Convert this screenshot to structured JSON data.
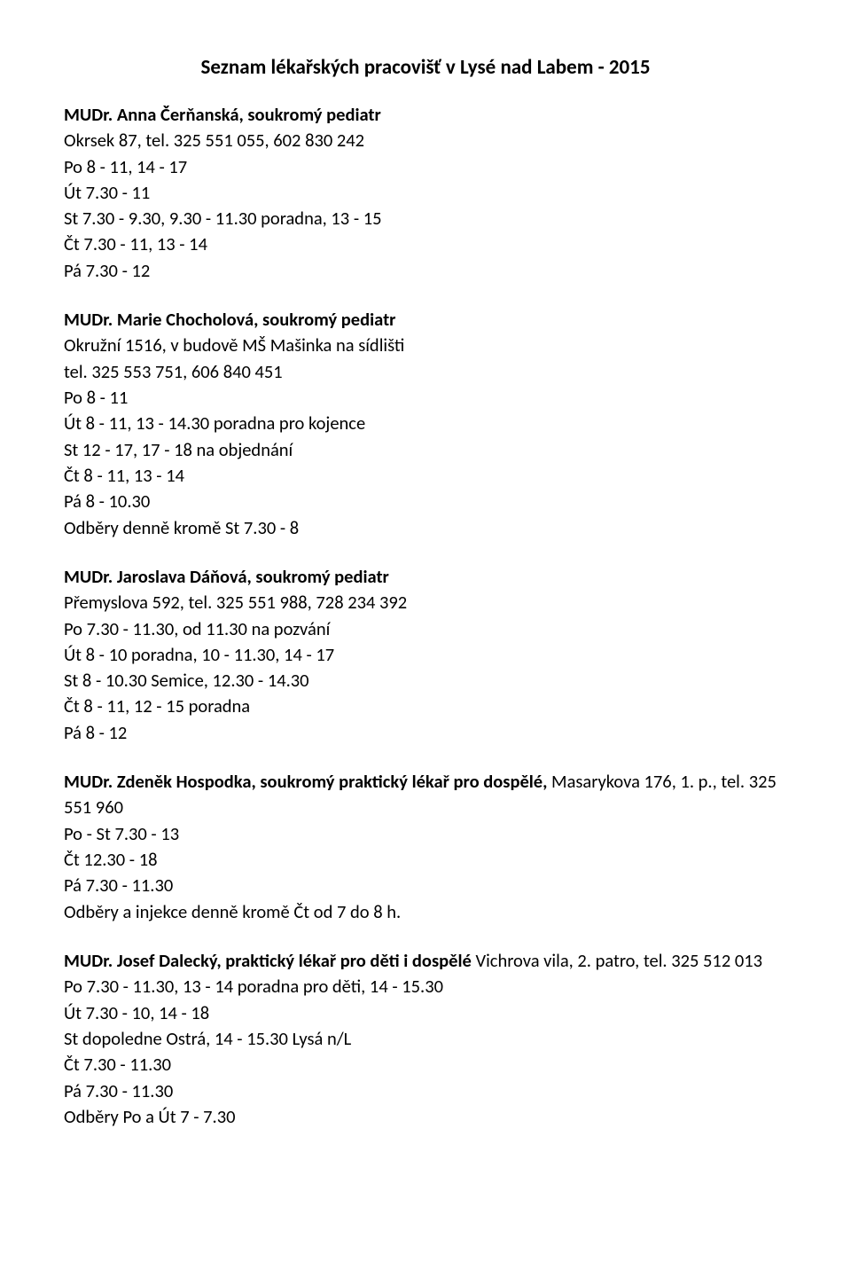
{
  "title": "Seznam lékařských pracovišť v Lysé nad Labem - 2015",
  "sections": [
    {
      "heading_pre": "",
      "heading_bold": "MUDr. Anna Čerňanská, soukromý pediatr",
      "heading_post": "",
      "lines": [
        "Okrsek 87, tel. 325 551 055, 602 830 242",
        "Po  8 - 11,  14 - 17",
        "Út 7.30 - 11",
        "St  7.30 - 9.30,  9.30 - 11.30 poradna,  13 - 15",
        "Čt 7.30 - 11, 13 - 14",
        "Pá 7.30 - 12"
      ]
    },
    {
      "heading_pre": "",
      "heading_bold": "MUDr. Marie Chocholová, soukromý pediatr",
      "heading_post": "",
      "lines": [
        "Okružní 1516, v budově MŠ Mašinka na sídlišti",
        "tel. 325 553 751,  606 840 451",
        "Po  8 - 11",
        "Út   8 - 11,  13 - 14.30 poradna pro kojence",
        "St  12 - 17,  17 - 18 na objednání",
        "Čt   8 - 11,  13 - 14",
        "Pá  8 - 10.30",
        "Odběry denně kromě St 7.30 - 8"
      ]
    },
    {
      "heading_pre": "",
      "heading_bold": "MUDr. Jaroslava Dáňová, soukromý pediatr",
      "heading_post": "",
      "lines": [
        "Přemyslova 592, tel. 325 551 988, 728 234 392",
        "Po  7.30 - 11.30,  od 11.30 na pozvání",
        "Út   8 - 10 poradna,  10 - 11.30,  14 - 17",
        "St   8 - 10.30 Semice,  12.30 - 14.30",
        "Čt   8 - 11,  12 - 15 poradna",
        "Pá  8 - 12"
      ]
    },
    {
      "heading_pre": "",
      "heading_bold": "MUDr. Zdeněk Hospodka, soukromý praktický lékař pro dospělé, ",
      "heading_post": "Masarykova 176, 1. p., tel. 325 551 960",
      "lines": [
        "Po - St   7.30 - 13",
        "Čt         12.30 - 18",
        "Pá         7.30 - 11.30",
        "Odběry a injekce denně kromě Čt od 7 do 8 h."
      ]
    },
    {
      "heading_pre": "",
      "heading_bold": "MUDr. Josef Dalecký, praktický lékař pro děti i dospělé ",
      "heading_post": "Vichrova vila, 2. patro, tel. 325 512 013",
      "lines": [
        "Po  7.30 - 11.30,  13 - 14 poradna pro děti,  14 - 15.30",
        "Út 7.30 - 10,  14 - 18",
        "St  dopoledne Ostrá, 14 - 15.30 Lysá n/L",
        "Čt 7.30 - 11.30",
        "Pá 7.30 - 11.30",
        "Odběry Po a Út 7 - 7.30"
      ]
    }
  ]
}
